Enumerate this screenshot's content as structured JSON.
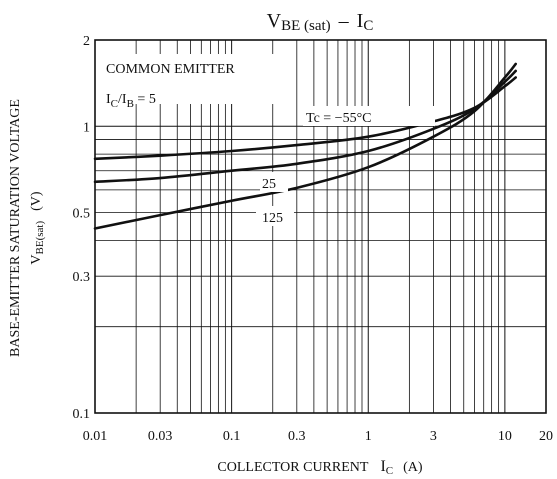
{
  "chart_data": {
    "type": "line",
    "title": {
      "main": "V",
      "main_sub": "BE (sat)",
      "dash": "–",
      "var": "I",
      "var_sub": "C"
    },
    "x_axis": {
      "label": "COLLECTOR CURRENT",
      "label_var": "I",
      "label_var_sub": "C",
      "label_unit": "(A)",
      "scale": "log",
      "range": [
        0.01,
        20
      ],
      "tick_labels": [
        {
          "value": 0.01,
          "label": "0.01"
        },
        {
          "value": 0.03,
          "label": "0.03"
        },
        {
          "value": 0.1,
          "label": "0.1"
        },
        {
          "value": 0.3,
          "label": "0.3"
        },
        {
          "value": 1,
          "label": "1"
        },
        {
          "value": 3,
          "label": "3"
        },
        {
          "value": 10,
          "label": "10"
        },
        {
          "value": 20,
          "label": "20"
        }
      ]
    },
    "y_axis": {
      "label_line1": "BASE-EMITTER SATURATION VOLTAGE",
      "label_line2_var": "V",
      "label_line2_sub": "BE(sat)",
      "label_line2_unit": "(V)",
      "scale": "log",
      "range": [
        0.1,
        2
      ],
      "tick_labels": [
        {
          "value": 0.1,
          "label": "0.1"
        },
        {
          "value": 0.3,
          "label": "0.3"
        },
        {
          "value": 0.5,
          "label": "0.5"
        },
        {
          "value": 1,
          "label": "1"
        },
        {
          "value": 2,
          "label": "2"
        }
      ]
    },
    "grid": true,
    "annotations": {
      "line1": "COMMON EMITTER",
      "line2": {
        "a": "I",
        "a_sub": "C",
        "slash": "/",
        "b": "I",
        "b_sub": "B",
        "rest": " = 5"
      }
    },
    "series": [
      {
        "name": "Tc = −55°C",
        "x": [
          0.01,
          0.03,
          0.1,
          0.3,
          1,
          3,
          6,
          10,
          12
        ],
        "y": [
          0.77,
          0.79,
          0.82,
          0.86,
          0.92,
          1.04,
          1.16,
          1.38,
          1.48
        ]
      },
      {
        "name": "25",
        "x": [
          0.01,
          0.03,
          0.1,
          0.3,
          1,
          3,
          6,
          10,
          12
        ],
        "y": [
          0.64,
          0.66,
          0.7,
          0.74,
          0.82,
          0.98,
          1.15,
          1.43,
          1.56
        ]
      },
      {
        "name": "125",
        "x": [
          0.01,
          0.03,
          0.1,
          0.3,
          1,
          3,
          6,
          10,
          12
        ],
        "y": [
          0.44,
          0.49,
          0.55,
          0.61,
          0.72,
          0.92,
          1.13,
          1.48,
          1.65
        ]
      }
    ],
    "series_labels": [
      "Tc = −55°C",
      "25",
      "125"
    ]
  }
}
